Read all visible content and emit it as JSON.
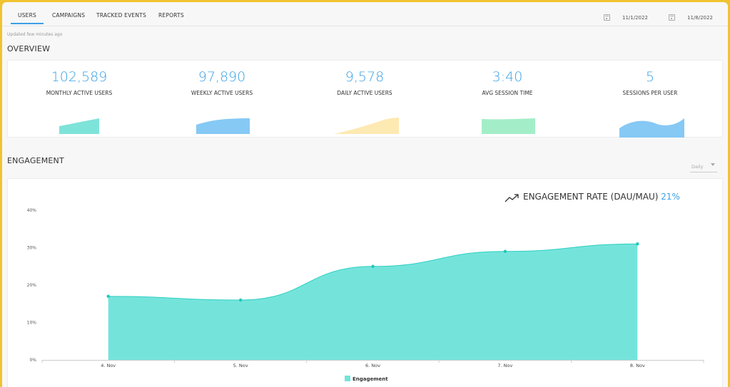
{
  "tabs": [
    {
      "label": "USERS",
      "active": true
    },
    {
      "label": "CAMPAIGNS",
      "active": false
    },
    {
      "label": "TRACKED EVENTS",
      "active": false
    },
    {
      "label": "REPORTS",
      "active": false
    }
  ],
  "date_range": {
    "start": "11/1/2022",
    "end": "11/8/2022"
  },
  "updated_text": "Updated few minutes ago",
  "overview": {
    "title": "OVERVIEW",
    "stats": [
      {
        "value": "102,589",
        "label": "MONTHLY ACTIVE USERS",
        "color": "#7ee3d9"
      },
      {
        "value": "97,890",
        "label": "WEEKLY ACTIVE USERS",
        "color": "#86c9f5"
      },
      {
        "value": "9,578",
        "label": "DAILY ACTIVE USERS",
        "color": "#fde9b2"
      },
      {
        "value": "3:40",
        "label": "AVG SESSION TIME",
        "color": "#a3eec8"
      },
      {
        "value": "5",
        "label": "SESSIONS PER USER",
        "color": "#86c9f5"
      }
    ]
  },
  "engagement": {
    "title": "ENGAGEMENT",
    "period": "Daily",
    "rate_label": "ENGAGEMENT RATE (DAU/MAU)",
    "rate_value": "21%"
  },
  "chart_data": {
    "type": "area",
    "categories": [
      "4. Nov",
      "5. Nov",
      "6. Nov",
      "7. Nov",
      "8. Nov"
    ],
    "series": [
      {
        "name": "Engagement",
        "values": [
          17,
          16,
          25,
          29,
          31
        ],
        "color": "#74e4db"
      }
    ],
    "yticks": [
      "0%",
      "10%",
      "20%",
      "30%",
      "40%"
    ],
    "ylim": [
      0,
      40
    ],
    "grid": false,
    "legend": "bottom"
  }
}
